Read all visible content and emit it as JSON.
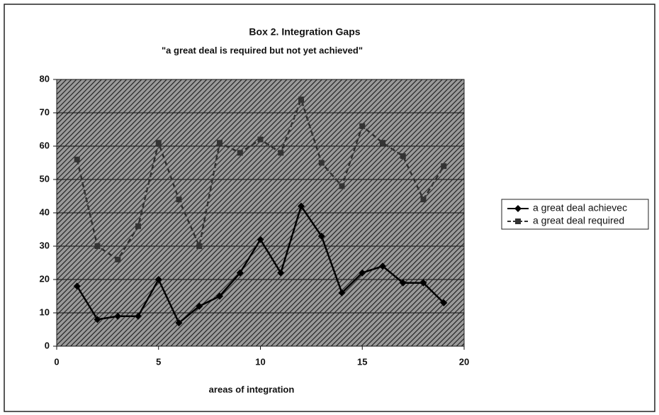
{
  "chart_data": {
    "type": "line",
    "title": "Box 2. Integration Gaps",
    "subtitle": "\"a great deal is required but not yet achieved\"",
    "x_label": "areas of integration",
    "x": [
      1,
      2,
      3,
      4,
      5,
      6,
      7,
      8,
      9,
      10,
      11,
      12,
      13,
      14,
      15,
      16,
      17,
      18,
      19
    ],
    "series": [
      {
        "name": "a great deal achievec",
        "color": "#000000",
        "values": [
          18,
          8,
          9,
          9,
          20,
          7,
          12,
          15,
          22,
          32,
          22,
          42,
          33,
          16,
          22,
          24,
          19,
          19,
          13
        ]
      },
      {
        "name": "a great deal required",
        "color": "#333333",
        "values": [
          56,
          30,
          26,
          36,
          61,
          44,
          30,
          61,
          58,
          62,
          58,
          74,
          55,
          48,
          66,
          61,
          57,
          44,
          54
        ]
      }
    ],
    "xlim": [
      0,
      20
    ],
    "xticks": [
      0,
      5,
      10,
      15,
      20
    ],
    "ylim": [
      0,
      80
    ],
    "yticks": [
      0,
      10,
      20,
      30,
      40,
      50,
      60,
      70,
      80
    ],
    "grid": true,
    "legend": "right"
  }
}
